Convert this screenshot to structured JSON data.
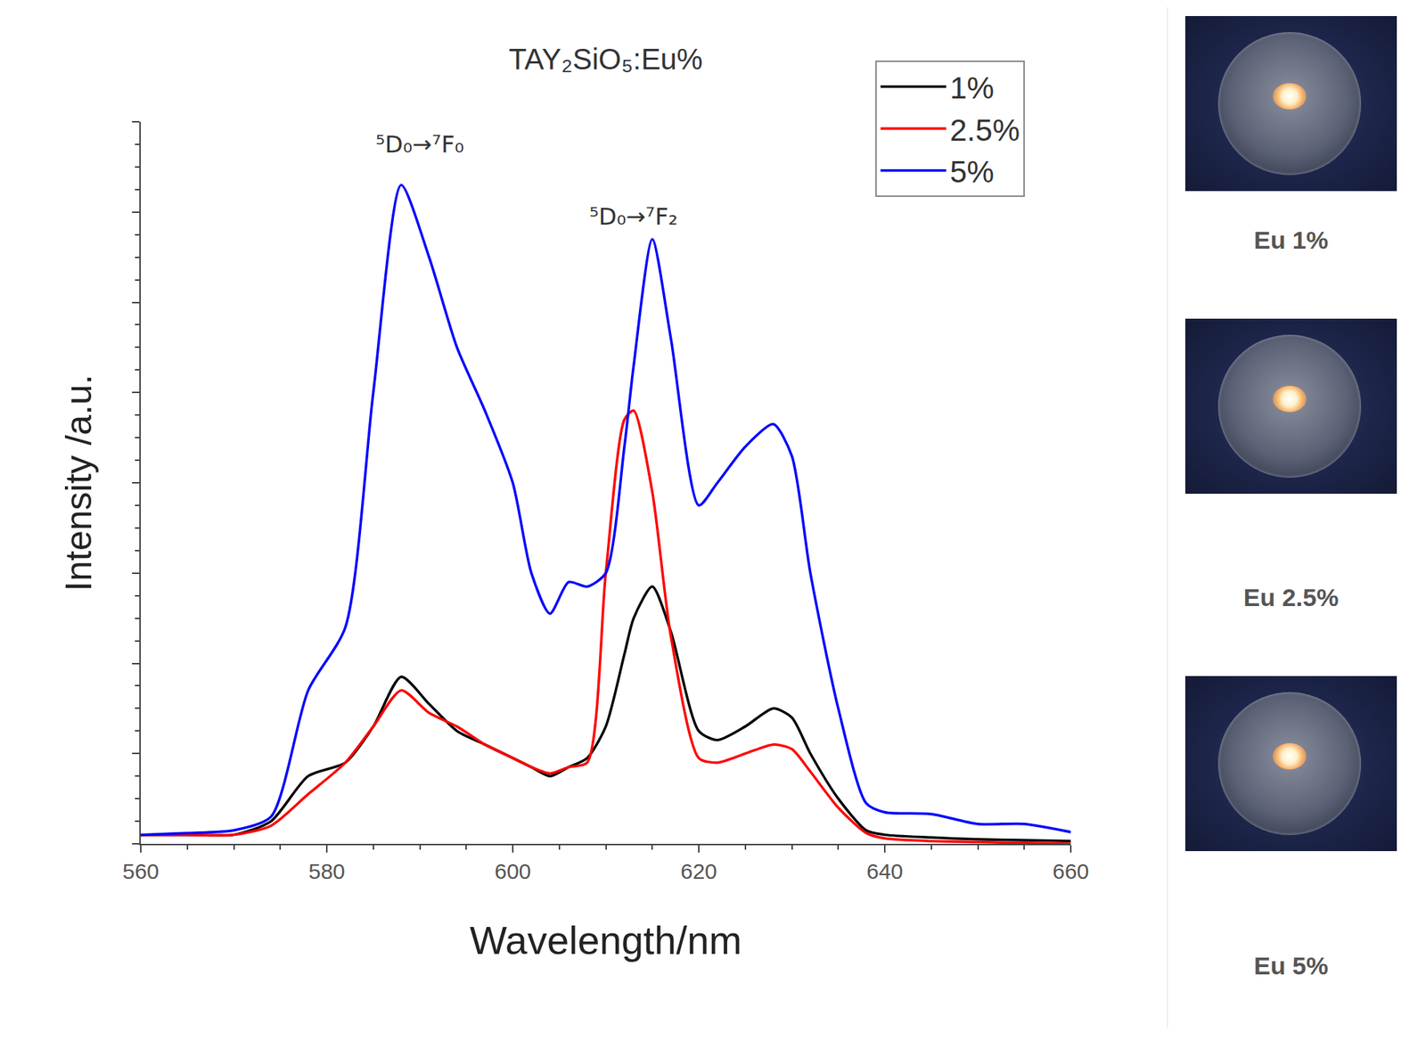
{
  "chart_data": {
    "type": "line",
    "title": "TAY₂SiO₅:Eu%",
    "x_label": "Wavelength/nm",
    "y_label": "Intensity /a.u.",
    "x": [
      560,
      565,
      570,
      574,
      578,
      582,
      585,
      588,
      591,
      594,
      597,
      600,
      602,
      604,
      606,
      608,
      610,
      612,
      613,
      615,
      617,
      620,
      622,
      625,
      628,
      630,
      632,
      635,
      638,
      640,
      645,
      650,
      655,
      660
    ],
    "series": [
      {
        "name": "1%",
        "color": "#000000",
        "values": [
          0.1,
          0.1,
          0.1,
          0.25,
          0.75,
          0.9,
          1.3,
          1.85,
          1.55,
          1.25,
          1.1,
          0.95,
          0.85,
          0.75,
          0.85,
          0.95,
          1.3,
          2.1,
          2.5,
          2.85,
          2.35,
          1.25,
          1.15,
          1.3,
          1.5,
          1.4,
          1.0,
          0.5,
          0.15,
          0.1,
          0.07,
          0.05,
          0.04,
          0.03
        ]
      },
      {
        "name": "2.5%",
        "color": "#ff0000",
        "values": [
          0.1,
          0.1,
          0.1,
          0.2,
          0.55,
          0.9,
          1.3,
          1.7,
          1.45,
          1.3,
          1.1,
          0.95,
          0.85,
          0.78,
          0.85,
          0.9,
          3.0,
          4.7,
          4.8,
          3.9,
          2.3,
          0.95,
          0.9,
          1.0,
          1.1,
          1.05,
          0.8,
          0.4,
          0.12,
          0.06,
          0.03,
          0.02,
          0.01,
          0.0
        ]
      },
      {
        "name": "5%",
        "color": "#0000ff",
        "values": [
          0.1,
          0.12,
          0.15,
          0.3,
          1.7,
          2.4,
          5.0,
          7.3,
          6.5,
          5.5,
          4.8,
          4.0,
          3.0,
          2.55,
          2.9,
          2.85,
          3.0,
          4.4,
          5.3,
          6.7,
          5.6,
          3.75,
          4.0,
          4.4,
          4.65,
          4.3,
          3.0,
          1.5,
          0.45,
          0.35,
          0.33,
          0.22,
          0.22,
          0.13
        ]
      }
    ],
    "annotations": [
      {
        "text": "⁵D₀→⁷F₀",
        "x": 590,
        "y": 7.75
      },
      {
        "text": "⁵D₀→⁷F₂",
        "x": 613,
        "y": 6.95
      }
    ],
    "xlim": [
      560,
      660
    ],
    "xticks": [
      560,
      580,
      600,
      620,
      640,
      660
    ],
    "ylim": [
      0,
      8
    ],
    "yticks": [
      0,
      1,
      2,
      3,
      4,
      5,
      6,
      7,
      8
    ],
    "tick_labels": "x",
    "grid": false,
    "legend": "upper right",
    "photos": [
      {
        "caption": "Eu 1%"
      },
      {
        "caption": "Eu 2.5%"
      },
      {
        "caption": "Eu 5%"
      }
    ]
  }
}
